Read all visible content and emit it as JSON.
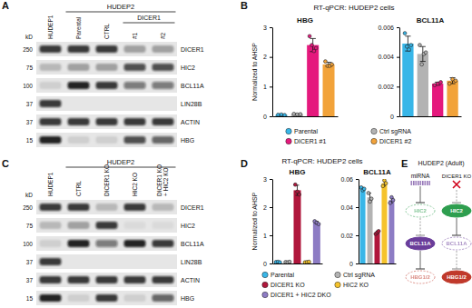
{
  "chart_data": [
    {
      "type": "bar",
      "title": "HBG",
      "ylabel": "Normalized to AHSP",
      "categories": [
        "Parental",
        "Ctrl sgRNA",
        "DICER1 #1",
        "DICER1 #2"
      ],
      "colors": [
        "#38b6e8",
        "#b3b3b3",
        "#e5197d",
        "#f2a33a"
      ],
      "values": [
        0.05,
        0.07,
        2.4,
        1.75
      ],
      "errors": [
        0.01,
        0.01,
        0.22,
        0.07
      ],
      "points": [
        [
          0.05,
          0.06,
          0.04
        ],
        [
          0.08,
          0.06,
          0.07
        ],
        [
          2.7,
          2.4,
          2.2,
          2.3
        ],
        [
          1.85,
          1.7,
          1.7,
          1.75
        ]
      ],
      "ylim": [
        0,
        3
      ],
      "yticks": [
        0,
        1,
        2,
        3
      ],
      "tick_labels": "y",
      "legend": "bottom"
    },
    {
      "type": "bar",
      "title": "BCL11A",
      "categories": [
        null,
        null,
        null,
        null
      ],
      "colors": [
        "#38b6e8",
        "#b3b3b3",
        "#e5197d",
        "#f2a33a"
      ],
      "values": [
        0.0049,
        0.0042,
        0.0022,
        0.0024
      ],
      "errors": [
        0.0005,
        0.0005,
        0.0001,
        0.0002
      ],
      "points": [
        [
          0.0056,
          0.0047,
          0.0045,
          0.0048
        ],
        [
          0.0048,
          0.0035,
          0.0042,
          0.0043
        ],
        [
          0.0021,
          0.0022,
          0.0023
        ],
        [
          0.0022,
          0.0025,
          0.0024
        ]
      ],
      "ylim": [
        0,
        0.006
      ],
      "yticks": [
        0,
        0.002,
        0.004,
        0.006
      ],
      "tick_labels": "y"
    },
    {
      "type": "bar",
      "title": "HBG",
      "ylabel": "Normalized to AHSP",
      "categories": [
        "Parental",
        "Ctrl sgRNA",
        "DICER1 KO",
        "HIC2 KO",
        "DICER1 + HIC2 DKO"
      ],
      "colors": [
        "#38b6e8",
        "#b3b3b3",
        "#b0173c",
        "#f5c32c",
        "#8d7cc4"
      ],
      "values": [
        0.05,
        0.05,
        2.6,
        0.05,
        1.45
      ],
      "errors": [
        0.01,
        0.01,
        0.18,
        0.01,
        0.05
      ],
      "points": [
        [
          0.05,
          0.06,
          0.04
        ],
        [
          0.05,
          0.04,
          0.06
        ],
        [
          2.8,
          2.55,
          2.45
        ],
        [
          0.04,
          0.05,
          0.06
        ],
        [
          1.5,
          1.45,
          1.4
        ]
      ],
      "ylim": [
        0,
        3
      ],
      "yticks": [
        0,
        1,
        2,
        3
      ],
      "tick_labels": "y",
      "legend": "bottom"
    },
    {
      "type": "bar",
      "title": "BCL11A",
      "categories": [
        null,
        null,
        null,
        null,
        null
      ],
      "colors": [
        "#38b6e8",
        "#b3b3b3",
        "#b0173c",
        "#f5c32c",
        "#8d7cc4"
      ],
      "values": [
        0.053,
        0.047,
        0.022,
        0.057,
        0.045
      ],
      "errors": [
        0.001,
        0.003,
        0.001,
        0.002,
        0.002
      ],
      "points": [
        [
          0.054,
          0.052,
          0.053
        ],
        [
          0.05,
          0.044,
          0.046
        ],
        [
          0.021,
          0.022,
          0.023
        ],
        [
          0.055,
          0.059,
          0.057
        ],
        [
          0.043,
          0.047,
          0.045
        ]
      ],
      "ylim": [
        0,
        0.06
      ],
      "yticks": [
        0,
        0.02,
        0.04,
        0.06
      ],
      "tick_labels": "y"
    }
  ],
  "figure": {
    "A": {
      "label": "A",
      "unit": "kD",
      "header": "HUDEP2",
      "subheader": "DICER1",
      "lanes": [
        "HUDEP1",
        "Parental",
        "CTRL",
        "#1",
        "#2"
      ],
      "rows": [
        {
          "protein": "DICER1",
          "kd": 250,
          "bands": [
            0.8,
            0.8,
            0.8,
            0.3,
            0.3
          ]
        },
        {
          "protein": "HIC2",
          "kd": 75,
          "bands": [
            0.2,
            0.3,
            0.3,
            0.7,
            0.7
          ]
        },
        {
          "protein": "BCL11A",
          "kd": 100,
          "bands": [
            0.1,
            0.9,
            0.8,
            0.5,
            0.5
          ]
        },
        {
          "protein": "LIN28B",
          "kd": 37,
          "bands": [
            0.8,
            0,
            0,
            0,
            0
          ]
        },
        {
          "protein": "ACTIN",
          "kd": 37,
          "bands": [
            0.8,
            0.8,
            0.8,
            0.8,
            0.8
          ]
        },
        {
          "protein": "HBG",
          "kd": 15,
          "bands": [
            0.9,
            0.1,
            0.1,
            0.7,
            0.6
          ]
        }
      ]
    },
    "B": {
      "label": "B",
      "title": "RT-qPCR: HUDEP2 cells"
    },
    "C": {
      "label": "C",
      "unit": "kD",
      "header": "HUDEP2",
      "lanes": [
        "HUDEP1",
        "CTRL",
        "DICER1 KO",
        "HIC2 KO",
        "DICER1 KO + HIC2 KO"
      ],
      "rows": [
        {
          "protein": "DICER1",
          "kd": 250,
          "bands": [
            0.8,
            0.8,
            0.2,
            0.8,
            0.2
          ]
        },
        {
          "protein": "HIC2",
          "kd": 75,
          "bands": [
            0.2,
            0.3,
            0.8,
            0.05,
            0.05
          ]
        },
        {
          "protein": "BCL11A",
          "kd": 100,
          "bands": [
            0.1,
            0.9,
            0.5,
            0.9,
            0.8
          ]
        },
        {
          "protein": "LIN28B",
          "kd": 37,
          "bands": [
            0.8,
            0,
            0,
            0,
            0
          ]
        },
        {
          "protein": "ACTIN",
          "kd": 37,
          "bands": [
            0.8,
            0.8,
            0.8,
            0.8,
            0.8
          ]
        },
        {
          "protein": "HBG",
          "kd": 15,
          "bands": [
            0.9,
            0.1,
            0.8,
            0.1,
            0.6
          ]
        }
      ]
    },
    "D": {
      "label": "D",
      "title": "RT-qPCR: HUDEP2 cells"
    },
    "E": {
      "label": "E",
      "title": "HUDEP2 (Adult)",
      "left": {
        "top": "miRNA",
        "nodes": [
          "HIC2",
          "BCL11A",
          "HBG1/2"
        ]
      },
      "right": {
        "top": "DICER1 KO",
        "nodes": [
          "HIC2",
          "BCL11A",
          "HBG1/2"
        ]
      }
    }
  }
}
